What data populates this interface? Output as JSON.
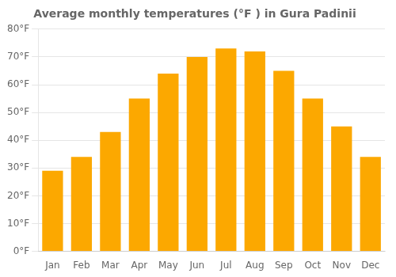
{
  "chart_data": {
    "type": "bar",
    "title": "Average monthly temperatures (°F ) in Gura Padinii",
    "categories": [
      "Jan",
      "Feb",
      "Mar",
      "Apr",
      "May",
      "Jun",
      "Jul",
      "Aug",
      "Sep",
      "Oct",
      "Nov",
      "Dec"
    ],
    "values": [
      29,
      34,
      43,
      55,
      64,
      70,
      73,
      72,
      65,
      55,
      45,
      34
    ],
    "color": "#FCA800",
    "ylim": [
      0,
      80
    ],
    "yticks": [
      {
        "value": 0,
        "label": "0°F"
      },
      {
        "value": 10,
        "label": "10°F"
      },
      {
        "value": 20,
        "label": "20°F"
      },
      {
        "value": 30,
        "label": "30°F"
      },
      {
        "value": 40,
        "label": "40°F"
      },
      {
        "value": 50,
        "label": "50°F"
      },
      {
        "value": 60,
        "label": "60°F"
      },
      {
        "value": 70,
        "label": "70°F"
      },
      {
        "value": 80,
        "label": "80°F"
      }
    ],
    "grid": true
  }
}
